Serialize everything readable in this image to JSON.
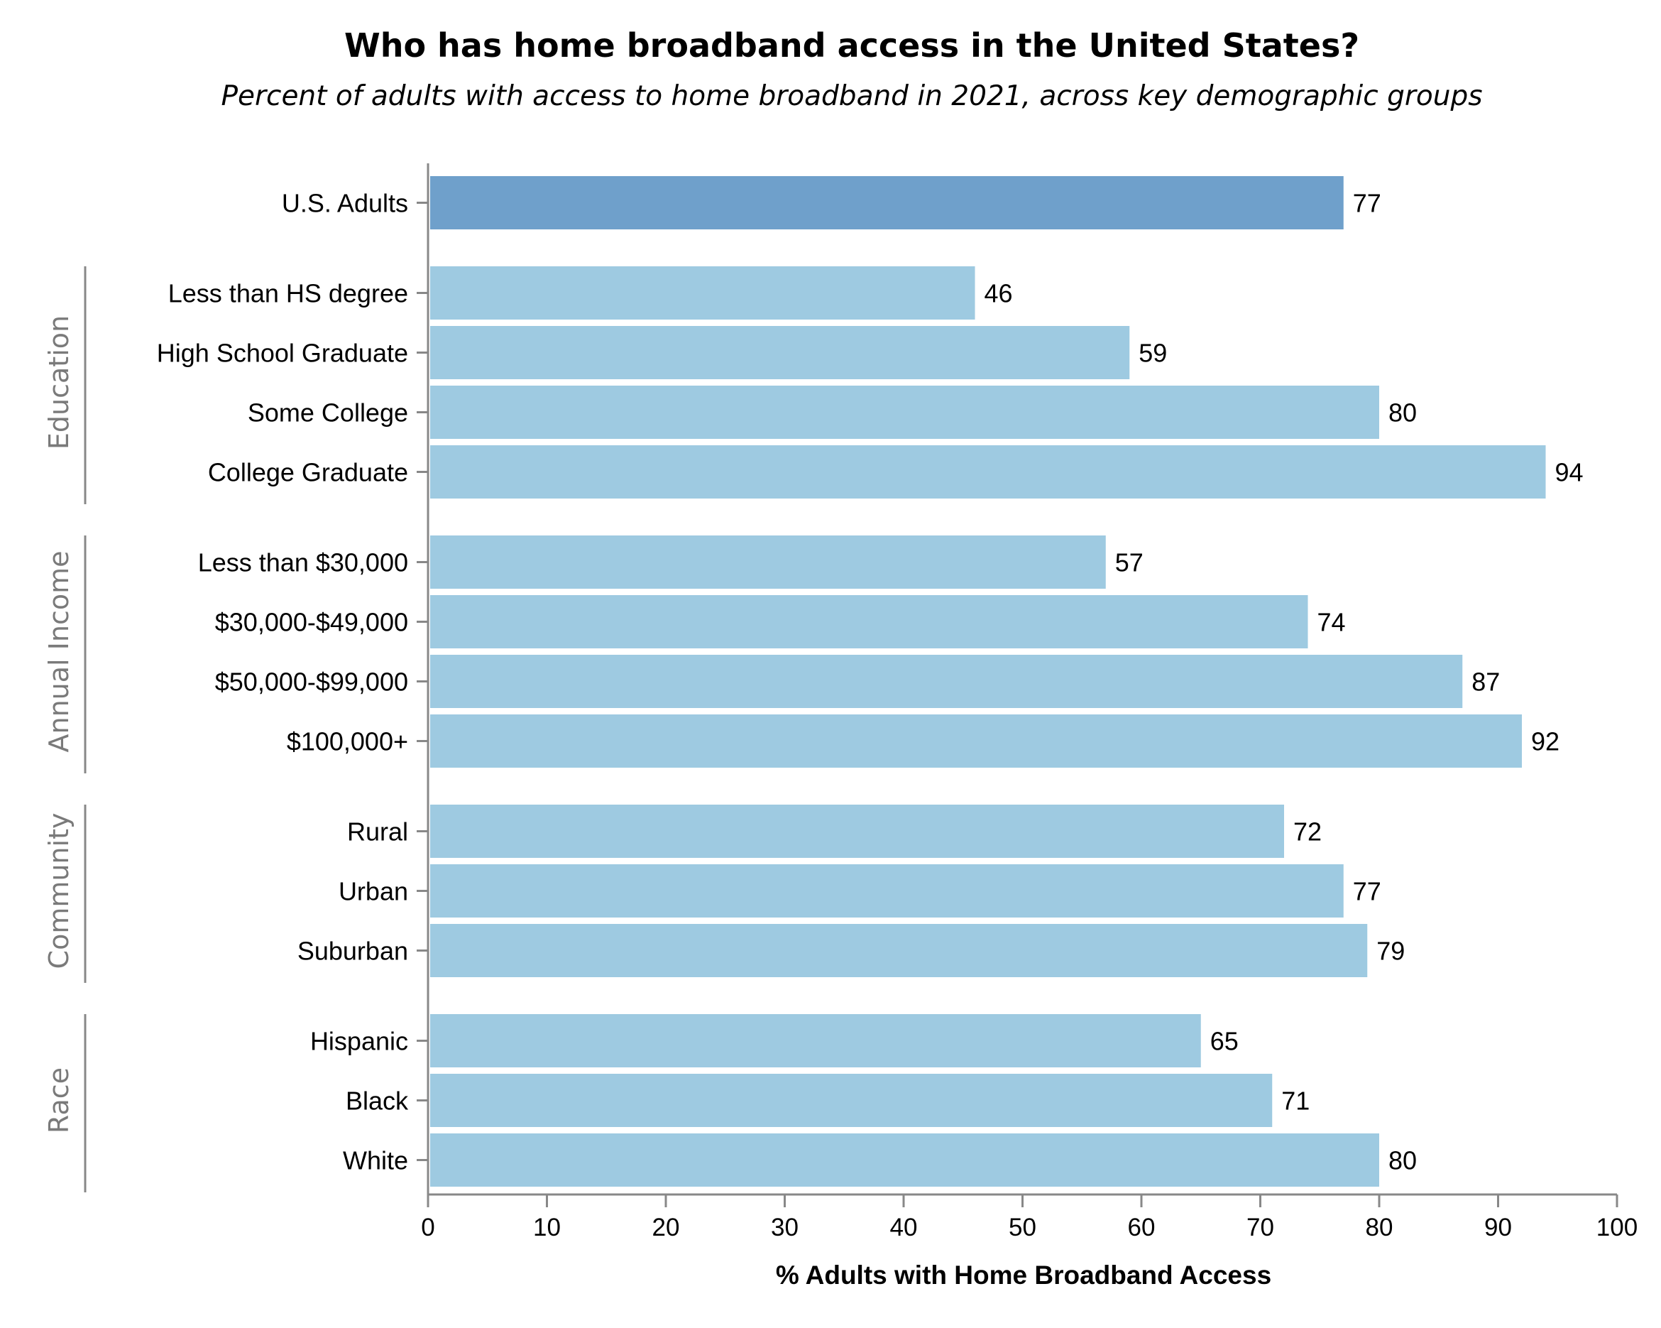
{
  "chart_data": {
    "type": "bar",
    "orientation": "horizontal",
    "title": "Who has home broadband access in the United States?",
    "subtitle": "Percent of adults with access to home broadband in 2021, across key demographic groups",
    "xlabel": "% Adults with Home Broadband Access",
    "xlim": [
      0,
      100
    ],
    "xticks": [
      0,
      10,
      20,
      30,
      40,
      50,
      60,
      70,
      80,
      90,
      100
    ],
    "grid": false,
    "highlight_color": "#6fa0cb",
    "bar_color": "#9ecae1",
    "groups": [
      {
        "name": "",
        "highlight": true,
        "items": [
          {
            "label": "U.S. Adults",
            "value": 77
          }
        ]
      },
      {
        "name": "Education",
        "items": [
          {
            "label": "Less than HS degree",
            "value": 46
          },
          {
            "label": "High School Graduate",
            "value": 59
          },
          {
            "label": "Some College",
            "value": 80
          },
          {
            "label": "College Graduate",
            "value": 94
          }
        ]
      },
      {
        "name": "Annual Income",
        "items": [
          {
            "label": "Less than $30,000",
            "value": 57
          },
          {
            "label": "$30,000-$49,000",
            "value": 74
          },
          {
            "label": "$50,000-$99,000",
            "value": 87
          },
          {
            "label": "$100,000+",
            "value": 92
          }
        ]
      },
      {
        "name": "Community",
        "items": [
          {
            "label": "Rural",
            "value": 72
          },
          {
            "label": "Urban",
            "value": 77
          },
          {
            "label": "Suburban",
            "value": 79
          }
        ]
      },
      {
        "name": "Race",
        "items": [
          {
            "label": "Hispanic",
            "value": 65
          },
          {
            "label": "Black",
            "value": 71
          },
          {
            "label": "White",
            "value": 80
          }
        ]
      }
    ]
  }
}
